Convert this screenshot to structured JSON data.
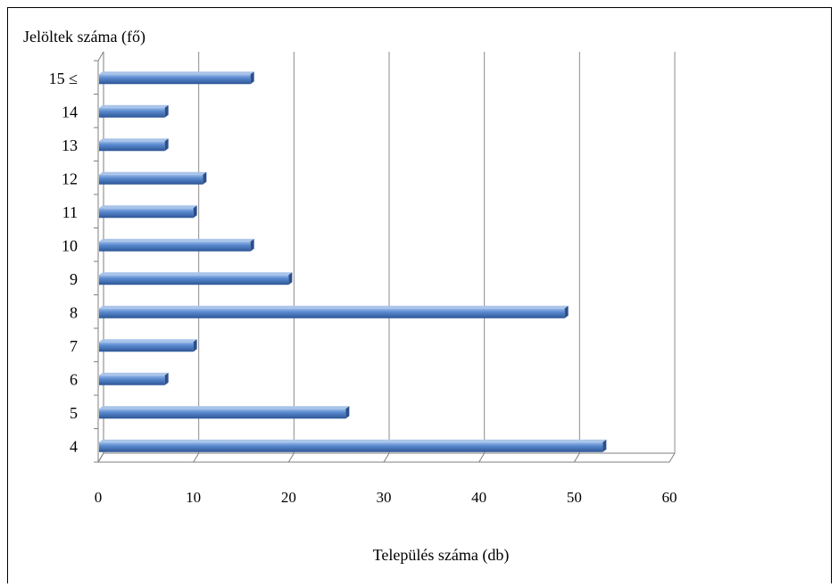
{
  "chart_data": {
    "type": "bar",
    "orientation": "horizontal",
    "three_d": true,
    "ylabel": "Jelöltek száma (fő)",
    "xlabel": "Település száma (db)",
    "categories": [
      "4",
      "5",
      "6",
      "7",
      "8",
      "9",
      "10",
      "11",
      "12",
      "13",
      "14",
      "15 ≤"
    ],
    "values": [
      53,
      26,
      7,
      10,
      49,
      20,
      16,
      10,
      11,
      7,
      7,
      16
    ],
    "xlim": [
      0,
      60
    ],
    "xticks": [
      "0",
      "10",
      "20",
      "30",
      "40",
      "50",
      "60"
    ],
    "grid": true,
    "bar_color": "#4a7bc1"
  }
}
